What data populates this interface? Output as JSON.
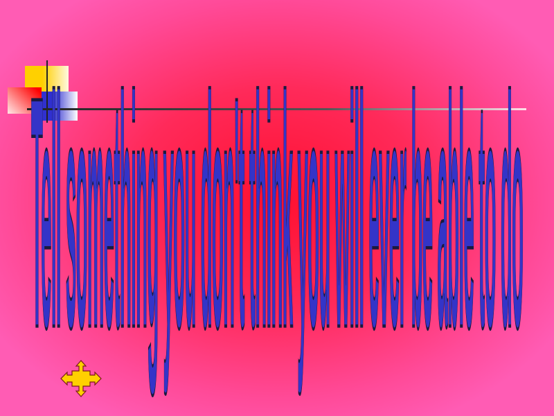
{
  "slide": {
    "title": "Tell something you don't think you will ever be able to do",
    "colors": {
      "background_center": "#ff1030",
      "background_edge": "#ff5cb4",
      "title_fill": "#3434c8",
      "nav_arrow_fill": "#ffd000"
    },
    "nav_icon": "four-way-arrow-icon"
  }
}
